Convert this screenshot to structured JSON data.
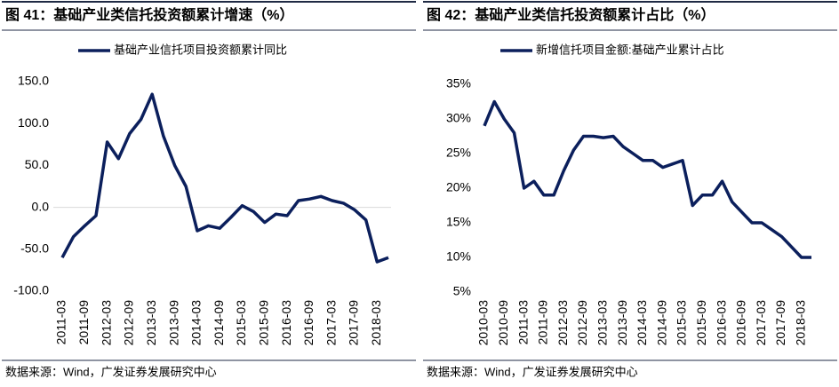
{
  "chart_data": [
    {
      "type": "line",
      "title": "图 41：基础产业类信托投资额累计增速（%）",
      "source": "数据来源：Wind，广发证券发展研究中心",
      "categories": [
        "2011-03",
        null,
        "2011-09",
        null,
        "2012-03",
        null,
        "2012-09",
        null,
        "2013-03",
        null,
        "2013-09",
        null,
        "2014-03",
        null,
        "2014-09",
        null,
        "2015-03",
        null,
        "2015-09",
        null,
        "2016-03",
        null,
        "2016-09",
        null,
        "2017-03",
        null,
        "2017-09",
        null,
        "2018-03",
        null
      ],
      "series": [
        {
          "name": "基础产业信托项目投资额累计同比",
          "color": "#0b1f5c",
          "values": [
            -60,
            -35,
            -22,
            -10,
            78,
            58,
            88,
            105,
            135,
            85,
            50,
            25,
            -28,
            -22,
            -25,
            -12,
            2,
            -5,
            -18,
            -8,
            -10,
            8,
            10,
            13,
            8,
            5,
            -3,
            -15,
            -65,
            -60
          ]
        }
      ],
      "ylim": [
        -100,
        150
      ],
      "yticks": [
        {
          "value": -100,
          "label": "-100.0"
        },
        {
          "value": -50,
          "label": "-50.0"
        },
        {
          "value": 0,
          "label": "0.0"
        },
        {
          "value": 50,
          "label": "50.0"
        },
        {
          "value": 100,
          "label": "100.0"
        },
        {
          "value": 150,
          "label": "150.0"
        }
      ]
    },
    {
      "type": "line",
      "title": "图 42：基础产业类信托投资额累计占比（%）",
      "source": "数据来源：Wind，广发证券发展研究中心",
      "categories": [
        "2010-03",
        null,
        "2010-09",
        null,
        "2011-03",
        null,
        "2011-09",
        null,
        "2012-03",
        null,
        "2012-09",
        null,
        "2013-03",
        null,
        "2013-09",
        null,
        "2014-03",
        null,
        "2014-09",
        null,
        "2015-03",
        null,
        "2015-09",
        null,
        "2016-03",
        null,
        "2016-09",
        null,
        "2017-03",
        null,
        "2017-09",
        null,
        "2018-03",
        null
      ],
      "series": [
        {
          "name": "新增信托项目金额:基础产业累计占比",
          "color": "#0b1f5c",
          "values": [
            29,
            32.5,
            30,
            28,
            20,
            21,
            19,
            19,
            22.5,
            25.5,
            27.5,
            27.5,
            27.3,
            27.5,
            26,
            25,
            24,
            24,
            23,
            23.5,
            24,
            17.5,
            19,
            19,
            21,
            18,
            16.5,
            15,
            15,
            14,
            13,
            11.5,
            10,
            10
          ]
        }
      ],
      "ylim": [
        5,
        35
      ],
      "yticks": [
        {
          "value": 5,
          "label": "5%"
        },
        {
          "value": 10,
          "label": "10%"
        },
        {
          "value": 15,
          "label": "15%"
        },
        {
          "value": 20,
          "label": "20%"
        },
        {
          "value": 25,
          "label": "25%"
        },
        {
          "value": 30,
          "label": "30%"
        },
        {
          "value": 35,
          "label": "35%"
        }
      ]
    }
  ]
}
